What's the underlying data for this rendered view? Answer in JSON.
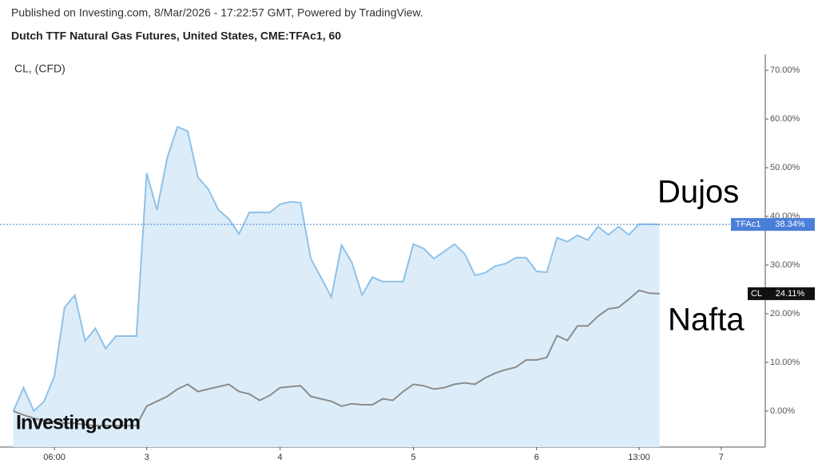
{
  "header": "Published on Investing.com, 8/Mar/2026 - 17:22:57 GMT, Powered by TradingView.",
  "chart_data": {
    "type": "line",
    "title": "Dutch TTF Natural Gas Futures, United States, CME:TFAc1, 60",
    "subtitle": "CL, (CFD)",
    "logo": "Investing.com",
    "annotations": [
      "Dujos",
      "Nafta"
    ],
    "xlim": [
      -1.3,
      73.3
    ],
    "xticks": [
      {
        "value": 4,
        "label": "06:00"
      },
      {
        "value": 13,
        "label": "3"
      },
      {
        "value": 26,
        "label": "4"
      },
      {
        "value": 39,
        "label": "5"
      },
      {
        "value": 51,
        "label": "6"
      },
      {
        "value": 61,
        "label": "13:00"
      },
      {
        "value": 69,
        "label": "7"
      }
    ],
    "ylim": [
      -7.4,
      73.3
    ],
    "yticks": [
      {
        "value": 0,
        "label": "0.00%"
      },
      {
        "value": 10,
        "label": "10.00%"
      },
      {
        "value": 20,
        "label": "20.00%"
      },
      {
        "value": 30,
        "label": "30.00%"
      },
      {
        "value": 40,
        "label": "40.00%"
      },
      {
        "value": 50,
        "label": "50.00%"
      },
      {
        "value": 60,
        "label": "60.00%"
      },
      {
        "value": 70,
        "label": "70.00%"
      }
    ],
    "series": [
      {
        "name": "TFAc1",
        "color": "#8fc1e8",
        "fill": "#dcedf9",
        "label_color": "#4a7fd8",
        "price_label": "38.34%",
        "values": [
          0,
          4.8,
          0,
          2,
          7.2,
          21.3,
          23.8,
          14.4,
          17,
          12.8,
          15.4,
          15.4,
          15.4,
          48.9,
          41.3,
          52,
          58.4,
          57.5,
          48,
          45.6,
          41.3,
          39.5,
          36.4,
          40.8,
          40.8,
          40.8,
          42.5,
          43,
          42.8,
          31.3,
          27.4,
          23.4,
          34.1,
          30.5,
          23.8,
          27.5,
          26.6,
          26.6,
          26.6,
          34.3,
          33.4,
          31.3,
          32.8,
          34.3,
          32.3,
          27.9,
          28.4,
          29.8,
          30.3,
          31.5,
          31.5,
          28.7,
          28.5,
          35.6,
          34.8,
          36.1,
          35.1,
          37.9,
          36.2,
          37.9,
          36.2,
          38.4,
          38.4,
          38.34
        ]
      },
      {
        "name": "CL",
        "color": "#8c8c8c",
        "label_color": "#111111",
        "price_label": "24.11%",
        "values": [
          0,
          -0.8,
          -1.5,
          -2,
          -2.2,
          -2.5,
          -2.5,
          -2.8,
          -3,
          -3,
          -3,
          -3,
          -3,
          1,
          2,
          3,
          4.5,
          5.5,
          4,
          4.5,
          5,
          5.5,
          4,
          3.5,
          2.2,
          3.2,
          4.8,
          5,
          5.2,
          3,
          2.5,
          2,
          1,
          1.5,
          1.3,
          1.3,
          2.5,
          2.2,
          4,
          5.5,
          5.2,
          4.5,
          4.8,
          5.5,
          5.8,
          5.5,
          6.8,
          7.8,
          8.5,
          9,
          10.5,
          10.5,
          11,
          15.5,
          14.5,
          17.5,
          17.5,
          19.5,
          21,
          21.3,
          23,
          24.8,
          24.2,
          24.11
        ]
      }
    ]
  }
}
